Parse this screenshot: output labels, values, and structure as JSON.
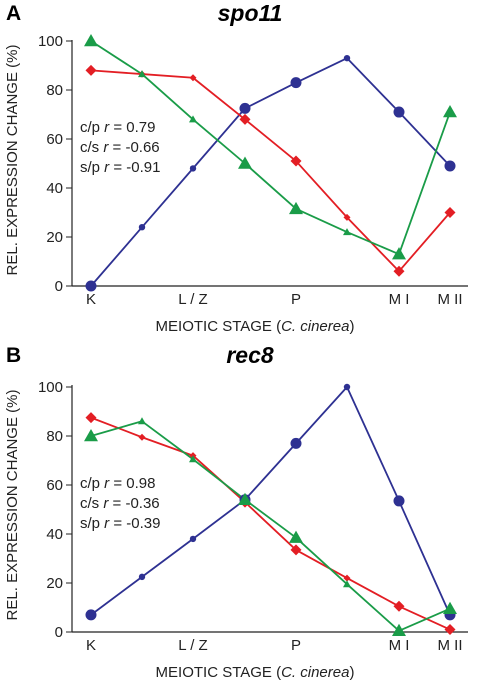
{
  "chart_data": [
    {
      "type": "line",
      "panel": "A",
      "title": "spo11",
      "xlabel": "MEIOTIC STAGE (",
      "xlabel_italic": "C. cinerea",
      "xlabel_end": ")",
      "ylabel": "REL. EXPRESSION CHANGE (%)",
      "ylim": [
        0,
        100
      ],
      "yticks": [
        "0",
        "20",
        "40",
        "60",
        "80",
        "100"
      ],
      "categories": [
        "K",
        "",
        "L / Z",
        "",
        "P",
        "",
        "M I",
        "M II"
      ],
      "annotations": [
        {
          "var": "c/p",
          "r": "=  0.79"
        },
        {
          "var": "c/s",
          "r": "= -0.66"
        },
        {
          "var": "s/p",
          "r": "= -0.91"
        }
      ],
      "series": [
        {
          "color": "#2e3192",
          "marker": "circle",
          "values": [
            0,
            24,
            48,
            72.5,
            83,
            93,
            71,
            49
          ]
        },
        {
          "color": "#e31e24",
          "marker": "diamond",
          "values": [
            88,
            86.5,
            85,
            68,
            51,
            28,
            6,
            30
          ]
        },
        {
          "color": "#1a9c48",
          "marker": "triangle",
          "values": [
            100,
            86.5,
            68,
            50,
            31.5,
            22,
            13,
            71
          ]
        }
      ]
    },
    {
      "type": "line",
      "panel": "B",
      "title": "rec8",
      "xlabel": "MEIOTIC STAGE (",
      "xlabel_italic": "C. cinerea",
      "xlabel_end": ")",
      "ylabel": "REL. EXPRESSION CHANGE (%)",
      "ylim": [
        0,
        100
      ],
      "yticks": [
        "0",
        "20",
        "40",
        "60",
        "80",
        "100"
      ],
      "categories": [
        "K",
        "",
        "L / Z",
        "",
        "P",
        "",
        "M I",
        "M II"
      ],
      "annotations": [
        {
          "var": "c/p",
          "r": "=  0.98"
        },
        {
          "var": "c/s",
          "r": "= -0.36"
        },
        {
          "var": "s/p",
          "r": "= -0.39"
        }
      ],
      "series": [
        {
          "color": "#2e3192",
          "marker": "circle",
          "values": [
            7,
            22.5,
            38,
            54,
            77,
            100,
            53.5,
            7
          ]
        },
        {
          "color": "#e31e24",
          "marker": "diamond",
          "values": [
            87.5,
            79.5,
            72,
            53,
            33.5,
            22,
            10.5,
            1
          ]
        },
        {
          "color": "#1a9c48",
          "marker": "triangle",
          "values": [
            80,
            86,
            70.5,
            54,
            38.5,
            19.5,
            0.5,
            9.5
          ]
        }
      ]
    }
  ]
}
